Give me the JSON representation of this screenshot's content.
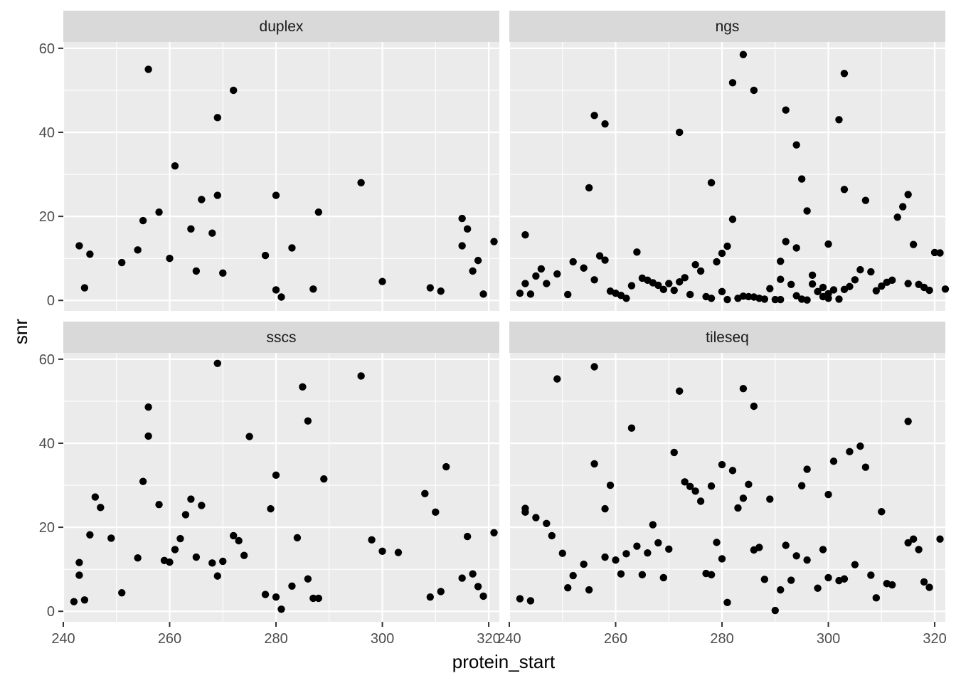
{
  "chart_data": {
    "type": "scatter",
    "xlabel": "protein_start",
    "ylabel": "snr",
    "xlim": [
      240,
      322
    ],
    "ylim": [
      -2.5,
      61.5
    ],
    "x_ticks": [
      240,
      260,
      280,
      300,
      320
    ],
    "y_ticks": [
      0,
      20,
      40,
      60
    ],
    "facet_layout": "2x2 grid, shared axes",
    "grid": true,
    "colors": {
      "panel_bg": "#ebebeb",
      "strip_bg": "#d9d9d9",
      "grid": "#ffffff",
      "point": "#000000"
    },
    "facets": [
      {
        "name": "duplex",
        "points": [
          [
            243,
            13
          ],
          [
            244,
            3
          ],
          [
            245,
            11
          ],
          [
            251,
            9
          ],
          [
            254,
            12
          ],
          [
            255,
            19
          ],
          [
            256,
            55
          ],
          [
            258,
            21
          ],
          [
            260,
            10
          ],
          [
            261,
            32
          ],
          [
            264,
            17
          ],
          [
            265,
            7
          ],
          [
            266,
            24
          ],
          [
            268,
            16
          ],
          [
            269,
            43.5
          ],
          [
            269,
            25
          ],
          [
            270,
            6.5
          ],
          [
            272,
            50
          ],
          [
            278,
            10.7
          ],
          [
            280,
            25
          ],
          [
            280,
            2.5
          ],
          [
            281,
            0.8
          ],
          [
            283,
            12.5
          ],
          [
            287,
            2.7
          ],
          [
            288,
            21
          ],
          [
            296,
            28
          ],
          [
            300,
            4.5
          ],
          [
            309,
            3
          ],
          [
            311,
            2.2
          ],
          [
            315,
            19.5
          ],
          [
            315,
            13
          ],
          [
            316,
            17
          ],
          [
            317,
            7
          ],
          [
            318,
            9.5
          ],
          [
            319,
            1.5
          ],
          [
            321,
            14
          ]
        ]
      },
      {
        "name": "ngs",
        "points": [
          [
            242,
            1.7
          ],
          [
            243,
            15.6
          ],
          [
            243,
            4
          ],
          [
            244,
            1.5
          ],
          [
            245,
            5.8
          ],
          [
            246,
            7.5
          ],
          [
            247,
            4
          ],
          [
            249,
            6.3
          ],
          [
            251,
            1.4
          ],
          [
            252,
            9.2
          ],
          [
            254,
            7.7
          ],
          [
            255,
            26.8
          ],
          [
            256,
            44
          ],
          [
            256,
            4.9
          ],
          [
            257,
            10.6
          ],
          [
            258,
            42
          ],
          [
            258,
            9.6
          ],
          [
            259,
            2.2
          ],
          [
            260,
            1.7
          ],
          [
            261,
            1.2
          ],
          [
            262,
            0.5
          ],
          [
            263,
            3.5
          ],
          [
            264,
            11.5
          ],
          [
            265,
            5.3
          ],
          [
            266,
            4.8
          ],
          [
            267,
            4.2
          ],
          [
            268,
            3.6
          ],
          [
            269,
            2.6
          ],
          [
            270,
            4
          ],
          [
            271,
            2.4
          ],
          [
            272,
            40
          ],
          [
            272,
            4.4
          ],
          [
            273,
            5.4
          ],
          [
            274,
            1.4
          ],
          [
            275,
            8.5
          ],
          [
            276,
            7
          ],
          [
            277,
            0.9
          ],
          [
            278,
            28
          ],
          [
            278,
            0.5
          ],
          [
            279,
            9.2
          ],
          [
            280,
            2.1
          ],
          [
            280,
            11.2
          ],
          [
            281,
            12.9
          ],
          [
            281,
            0.2
          ],
          [
            282,
            51.8
          ],
          [
            282,
            19.3
          ],
          [
            283,
            0.5
          ],
          [
            284,
            58.5
          ],
          [
            284,
            1
          ],
          [
            285,
            0.9
          ],
          [
            286,
            50
          ],
          [
            286,
            0.8
          ],
          [
            287,
            0.5
          ],
          [
            288,
            0.3
          ],
          [
            289,
            2.8
          ],
          [
            290,
            0.2
          ],
          [
            291,
            5
          ],
          [
            291,
            0.2
          ],
          [
            291,
            9.3
          ],
          [
            292,
            45.3
          ],
          [
            292,
            14
          ],
          [
            293,
            3.8
          ],
          [
            294,
            37
          ],
          [
            294,
            12.5
          ],
          [
            294,
            1.1
          ],
          [
            295,
            28.9
          ],
          [
            295,
            0.3
          ],
          [
            296,
            21.3
          ],
          [
            296,
            0.1
          ],
          [
            297,
            6
          ],
          [
            297,
            3.9
          ],
          [
            298,
            2.1
          ],
          [
            299,
            3.1
          ],
          [
            299,
            0.9
          ],
          [
            300,
            13.4
          ],
          [
            300,
            0.5
          ],
          [
            300,
            1.6
          ],
          [
            301,
            2.5
          ],
          [
            302,
            43
          ],
          [
            302,
            0.3
          ],
          [
            303,
            54
          ],
          [
            303,
            26.4
          ],
          [
            303,
            2.6
          ],
          [
            304,
            3.3
          ],
          [
            305,
            4.9
          ],
          [
            306,
            7.3
          ],
          [
            307,
            23.8
          ],
          [
            308,
            6.8
          ],
          [
            309,
            2.3
          ],
          [
            310,
            3.4
          ],
          [
            311,
            4.3
          ],
          [
            312,
            4.8
          ],
          [
            313,
            19.8
          ],
          [
            314,
            22.3
          ],
          [
            315,
            25.2
          ],
          [
            315,
            4
          ],
          [
            316,
            13.3
          ],
          [
            317,
            3.8
          ],
          [
            318,
            3.1
          ],
          [
            319,
            2.4
          ],
          [
            320,
            11.4
          ],
          [
            321,
            11.3
          ],
          [
            322,
            2.7
          ]
        ]
      },
      {
        "name": "sscs",
        "points": [
          [
            242,
            2.3
          ],
          [
            243,
            11.6
          ],
          [
            243,
            8.6
          ],
          [
            244,
            2.7
          ],
          [
            245,
            18.2
          ],
          [
            246,
            27.2
          ],
          [
            247,
            24.7
          ],
          [
            249,
            17.4
          ],
          [
            251,
            4.4
          ],
          [
            254,
            12.7
          ],
          [
            255,
            30.9
          ],
          [
            256,
            48.6
          ],
          [
            256,
            41.7
          ],
          [
            258,
            25.4
          ],
          [
            259,
            12.1
          ],
          [
            260,
            11.7
          ],
          [
            261,
            14.7
          ],
          [
            262,
            17.3
          ],
          [
            263,
            23
          ],
          [
            264,
            26.7
          ],
          [
            265,
            12.9
          ],
          [
            266,
            25.2
          ],
          [
            268,
            11.5
          ],
          [
            269,
            59
          ],
          [
            269,
            8.4
          ],
          [
            270,
            11.9
          ],
          [
            272,
            18
          ],
          [
            273,
            16.8
          ],
          [
            274,
            13.3
          ],
          [
            275,
            41.6
          ],
          [
            278,
            4
          ],
          [
            279,
            24.4
          ],
          [
            280,
            32.4
          ],
          [
            280,
            3.4
          ],
          [
            281,
            0.5
          ],
          [
            283,
            6
          ],
          [
            284,
            17.5
          ],
          [
            285,
            53.4
          ],
          [
            286,
            45.3
          ],
          [
            286,
            7.7
          ],
          [
            287,
            3.1
          ],
          [
            288,
            3.1
          ],
          [
            289,
            31.5
          ],
          [
            296,
            56
          ],
          [
            298,
            17
          ],
          [
            300,
            14.3
          ],
          [
            303,
            14
          ],
          [
            308,
            28
          ],
          [
            309,
            3.4
          ],
          [
            310,
            23.6
          ],
          [
            311,
            4.7
          ],
          [
            312,
            34.4
          ],
          [
            316,
            17.8
          ],
          [
            315,
            7.9
          ],
          [
            317,
            8.9
          ],
          [
            318,
            5.9
          ],
          [
            319,
            3.6
          ],
          [
            321,
            18.7
          ]
        ]
      },
      {
        "name": "tileseq",
        "points": [
          [
            242,
            3
          ],
          [
            243,
            24.5
          ],
          [
            243,
            23.6
          ],
          [
            244,
            2.5
          ],
          [
            245,
            22.3
          ],
          [
            247,
            20.9
          ],
          [
            248,
            18
          ],
          [
            249,
            55.3
          ],
          [
            250,
            13.8
          ],
          [
            251,
            5.6
          ],
          [
            252,
            8.5
          ],
          [
            254,
            11.2
          ],
          [
            255,
            5.1
          ],
          [
            256,
            58.2
          ],
          [
            256,
            35.1
          ],
          [
            258,
            24.4
          ],
          [
            258,
            12.9
          ],
          [
            259,
            30
          ],
          [
            260,
            12.2
          ],
          [
            261,
            8.9
          ],
          [
            262,
            13.7
          ],
          [
            263,
            43.6
          ],
          [
            264,
            15.5
          ],
          [
            265,
            8.7
          ],
          [
            266,
            13.9
          ],
          [
            267,
            20.6
          ],
          [
            268,
            16.3
          ],
          [
            269,
            8
          ],
          [
            270,
            14.8
          ],
          [
            271,
            37.8
          ],
          [
            272,
            52.4
          ],
          [
            273,
            30.8
          ],
          [
            274,
            29.7
          ],
          [
            275,
            28.6
          ],
          [
            276,
            26.2
          ],
          [
            277,
            9
          ],
          [
            278,
            8.7
          ],
          [
            278,
            29.8
          ],
          [
            279,
            16.4
          ],
          [
            280,
            34.9
          ],
          [
            280,
            12.5
          ],
          [
            281,
            2.1
          ],
          [
            282,
            33.5
          ],
          [
            283,
            24.6
          ],
          [
            284,
            53
          ],
          [
            284,
            26.9
          ],
          [
            285,
            30.2
          ],
          [
            286,
            48.8
          ],
          [
            286,
            14.6
          ],
          [
            287,
            15.2
          ],
          [
            288,
            7.6
          ],
          [
            289,
            26.7
          ],
          [
            290,
            0.2
          ],
          [
            291,
            5.1
          ],
          [
            292,
            15.7
          ],
          [
            293,
            7.4
          ],
          [
            294,
            13.2
          ],
          [
            295,
            29.9
          ],
          [
            296,
            33.8
          ],
          [
            296,
            12.2
          ],
          [
            298,
            5.5
          ],
          [
            299,
            14.7
          ],
          [
            300,
            27.8
          ],
          [
            300,
            8
          ],
          [
            301,
            35.7
          ],
          [
            302,
            7.3
          ],
          [
            303,
            7.7
          ],
          [
            304,
            38
          ],
          [
            305,
            11.1
          ],
          [
            306,
            39.3
          ],
          [
            307,
            34.3
          ],
          [
            308,
            8.6
          ],
          [
            309,
            3.2
          ],
          [
            310,
            23.7
          ],
          [
            311,
            6.6
          ],
          [
            312,
            6.3
          ],
          [
            315,
            45.2
          ],
          [
            315,
            16.3
          ],
          [
            316,
            17.2
          ],
          [
            317,
            14.7
          ],
          [
            318,
            7
          ],
          [
            319,
            5.7
          ],
          [
            321,
            17.2
          ]
        ]
      }
    ]
  }
}
